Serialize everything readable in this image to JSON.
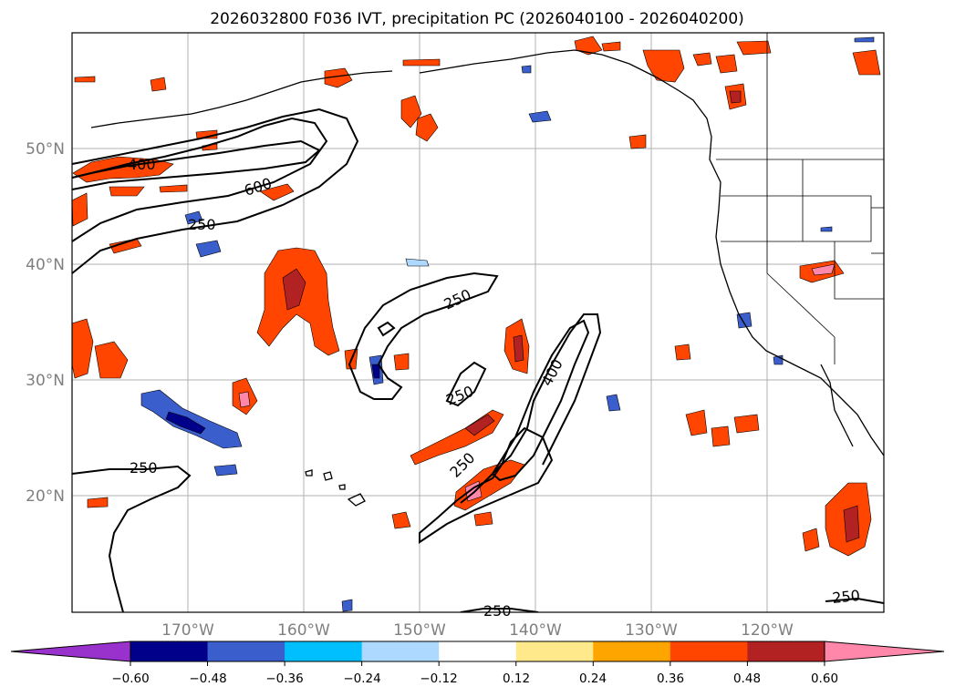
{
  "title": "2026032800 F036 IVT, precipitation PC (2026040100 - 2026040200)",
  "lon_labels": [
    "170°W",
    "160°W",
    "150°W",
    "140°W",
    "130°W",
    "120°W"
  ],
  "lat_labels": [
    "50°N",
    "40°N",
    "30°N",
    "20°N"
  ],
  "ivt_contour_labels": [
    "400",
    "600",
    "250",
    "250",
    "250",
    "400",
    "250",
    "250",
    "250",
    "250"
  ],
  "colorbar": {
    "ticks": [
      "−0.60",
      "−0.48",
      "−0.36",
      "−0.24",
      "−0.12",
      "0.12",
      "0.24",
      "0.36",
      "0.48",
      "0.60"
    ],
    "colors": [
      "#9932cc",
      "#00008b",
      "#3a5fcd",
      "#00bfff",
      "#add8ff",
      "#ffffff",
      "#ffe98a",
      "#ffa500",
      "#ff4500",
      "#b22222",
      "#ff88aa"
    ]
  },
  "colors": {
    "land_outline": "#000000",
    "gridline": "#b0b0b0",
    "tick_label": "#7f7f7f"
  }
}
